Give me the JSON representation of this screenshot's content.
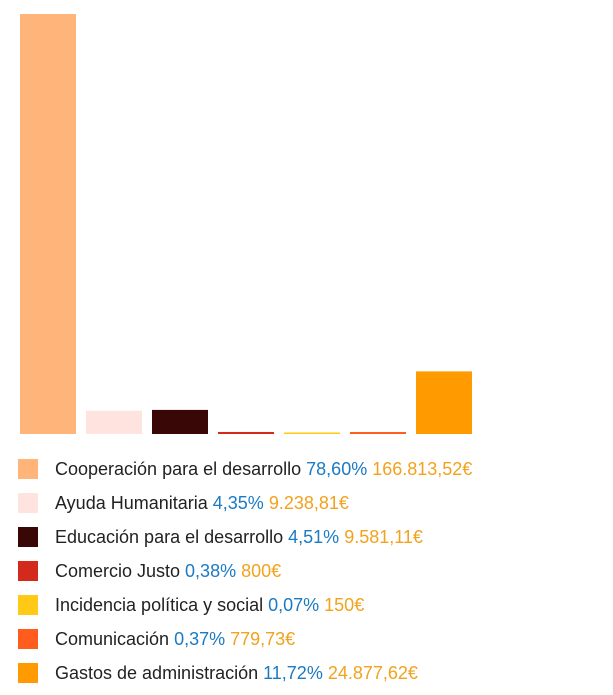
{
  "chart_data": {
    "type": "bar",
    "categories": [
      "Cooperación para el desarrollo",
      "Ayuda Humanitaria",
      "Educación para el desarrollo",
      "Comercio Justo",
      "Incidencia política y social",
      "Comunicación",
      "Gastos de administración"
    ],
    "values": [
      78.6,
      4.35,
      4.51,
      0.38,
      0.07,
      0.37,
      11.72
    ],
    "percent_labels": [
      "78,60%",
      "4,35%",
      "4,51%",
      "0,38%",
      "0,07%",
      "0,37%",
      "11,72%"
    ],
    "amount_labels": [
      "166.813,52€",
      "9.238,81€",
      "9.581,11€",
      "800€",
      "150€",
      "779,73€",
      "24.877,62€"
    ],
    "colors": [
      "#ffb479",
      "#ffe3df",
      "#3a0707",
      "#d42a1c",
      "#ffc916",
      "#ff5c1e",
      "#ff9a00"
    ],
    "ylim": [
      0,
      78.6
    ],
    "grid": false,
    "legend": "bottom"
  }
}
